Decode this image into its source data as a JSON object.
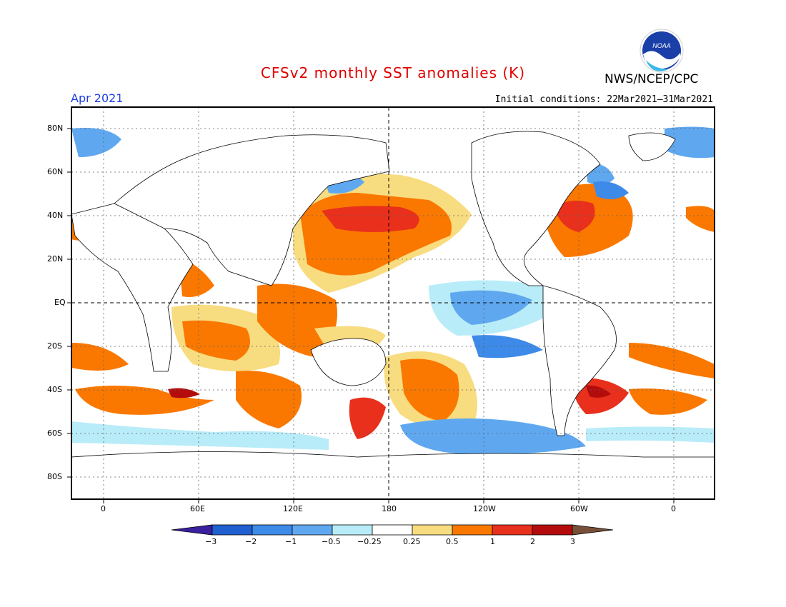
{
  "header": {
    "title": "CFSv2 monthly SST anomalies (K)",
    "month": "Apr 2021",
    "initial_conditions": "Initial conditions: 22Mar2021–31Mar2021",
    "agency": "NWS/NCEP/CPC",
    "logo_text": "NOAA"
  },
  "map": {
    "projection": "equirectangular",
    "center_longitude": 180,
    "lat_ticks": [
      "80N",
      "60N",
      "40N",
      "20N",
      "EQ",
      "20S",
      "40S",
      "60S",
      "80S"
    ],
    "lon_ticks": [
      "0",
      "60E",
      "120E",
      "180",
      "120W",
      "60W",
      "0"
    ],
    "grid": "dotted",
    "reference_lines": [
      "EQ",
      "180"
    ]
  },
  "colorbar": {
    "labels": [
      "−3",
      "−2",
      "−1",
      "−0.5",
      "−0.25",
      "0.25",
      "0.5",
      "1",
      "2",
      "3"
    ],
    "colors": [
      "#3a1fa0",
      "#1f5fd0",
      "#3d8ae8",
      "#5fa8f0",
      "#b8ecf8",
      "#ffffff",
      "#f8dc80",
      "#fa7800",
      "#e8301c",
      "#b40c0c",
      "#785038"
    ]
  },
  "colors": {
    "title": "#e00000",
    "month": "#2040e0"
  }
}
